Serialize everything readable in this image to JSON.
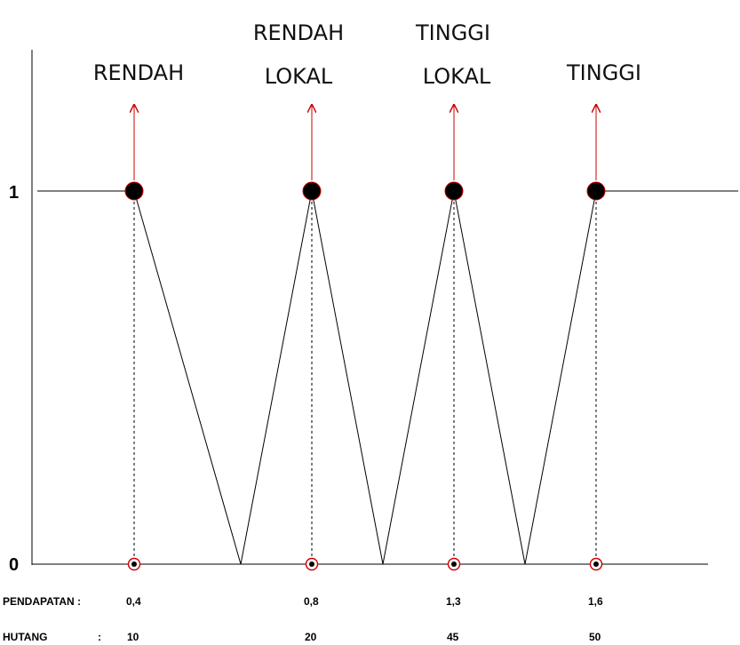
{
  "chart_data": {
    "type": "line",
    "y_ticks": [
      "1",
      "0"
    ],
    "sets": [
      {
        "label_lines": [
          "RENDAH"
        ],
        "x_index": 0
      },
      {
        "label_lines": [
          "RENDAH",
          "LOKAL"
        ],
        "x_index": 1
      },
      {
        "label_lines": [
          "TINGGI",
          "LOKAL"
        ],
        "x_index": 2
      },
      {
        "label_lines": [
          "TINGGI"
        ],
        "x_index": 3
      }
    ],
    "rows": [
      {
        "label": "PENDAPATAN :",
        "values": [
          "0,4",
          "0,8",
          "1,3",
          "1,6"
        ]
      },
      {
        "label": "HUTANG",
        "separator": ":",
        "values": [
          "10",
          "20",
          "45",
          "50"
        ]
      }
    ],
    "colors": {
      "line": "#000000",
      "arrow": "#cc0000",
      "point": "#000000",
      "point_ring": "#cc0000"
    }
  }
}
